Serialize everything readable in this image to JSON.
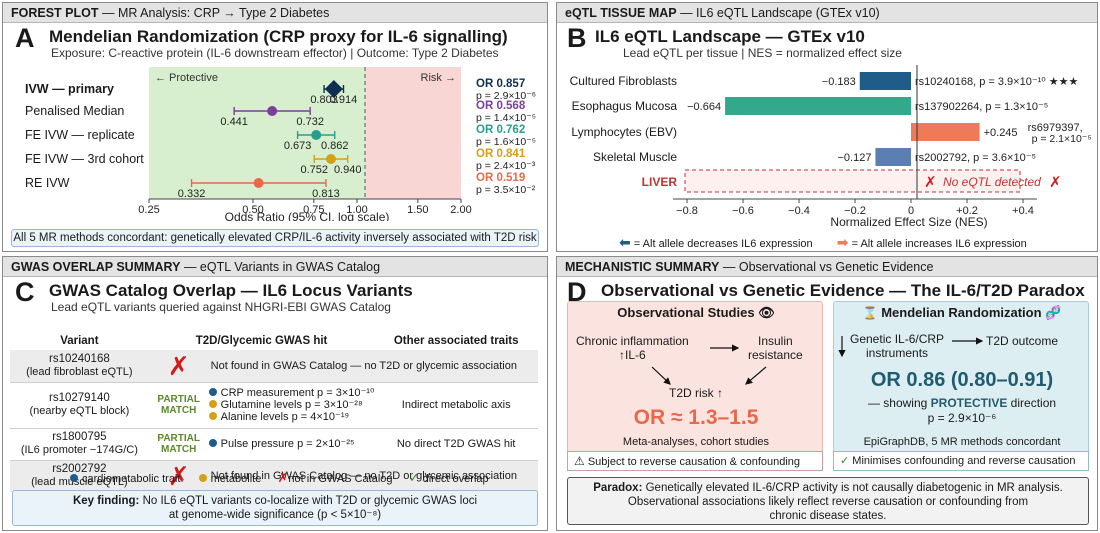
{
  "colors": {
    "ivw": "#0e2f52",
    "penalised": "#7b3f99",
    "fe_rep": "#2a9d8f",
    "fe_3rd": "#d4a017",
    "re": "#e8694a",
    "protective_bg": "#d8efcf",
    "risk_bg": "#f8d6d3",
    "neg_bar_dark": "#1f5c8a",
    "neg_bar_teal": "#34a88a",
    "pos_bar": "#ef7a5a",
    "cross": "#d11a1a",
    "check": "#2e8b2e",
    "obs_bg": "#fbe3df",
    "mr_bg": "#ddeef2"
  },
  "forest": {
    "header_bold": "FOREST PLOT",
    "header_rest": "— MR Analysis: CRP → Type 2 Diabetes",
    "letter": "A",
    "title": "Mendelian Randomization (CRP proxy for IL-6 signalling)",
    "subtitle": "Exposure: C-reactive protein (IL-6 downstream effector) | Outcome: Type 2 Diabetes",
    "protective_label": "← Protective",
    "risk_label": "Risk →",
    "xlabel": "Odds Ratio (95% CI, log scale)",
    "footer": "All 5 MR methods concordant: genetically elevated CRP/IL-6 activity inversely associated with T2D risk"
  },
  "chart_data": [
    {
      "type": "forest",
      "xlabel": "Odds Ratio (95% CI, log scale)",
      "xscale": "log",
      "xlim": [
        0.25,
        2.0
      ],
      "xticks": [
        "0.25",
        "0.50",
        "0.75",
        "1.00",
        "1.50",
        "2.00"
      ],
      "reference_line": 1.0,
      "rows": [
        {
          "method": "IVW — primary",
          "or": 0.857,
          "lo": 0.803,
          "hi": 0.914,
          "lo_label": "0.803",
          "hi_label": "0.914",
          "or_label": "OR 0.857",
          "p_label": "p = 2.9×10⁻⁶",
          "color": "#0e2f52",
          "marker": "diamond"
        },
        {
          "method": "Penalised Median",
          "or": 0.568,
          "lo": 0.441,
          "hi": 0.732,
          "lo_label": "0.441",
          "hi_label": "0.732",
          "or_label": "OR 0.568",
          "p_label": "p = 1.4×10⁻⁵",
          "color": "#7b3f99",
          "marker": "circle"
        },
        {
          "method": "FE IVW — replicate",
          "or": 0.762,
          "lo": 0.673,
          "hi": 0.862,
          "lo_label": "0.673",
          "hi_label": "0.862",
          "or_label": "OR 0.762",
          "p_label": "p = 1.6×10⁻⁵",
          "color": "#2a9d8f",
          "marker": "circle"
        },
        {
          "method": "FE IVW — 3rd cohort",
          "or": 0.841,
          "lo": 0.752,
          "hi": 0.94,
          "lo_label": "0.752",
          "hi_label": "0.940",
          "or_label": "OR 0.841",
          "p_label": "p = 2.4×10⁻³",
          "color": "#d4a017",
          "marker": "circle"
        },
        {
          "method": "RE IVW",
          "or": 0.519,
          "lo": 0.332,
          "hi": 0.813,
          "lo_label": "0.332",
          "hi_label": "0.813",
          "or_label": "OR 0.519",
          "p_label": "p = 3.5×10⁻²",
          "color": "#e8694a",
          "marker": "circle"
        }
      ]
    },
    {
      "type": "bar",
      "orientation": "horizontal",
      "xlabel": "Normalized Effect Size (NES)",
      "xlim": [
        -0.85,
        0.45
      ],
      "xticks": [
        "−0.8",
        "−0.6",
        "−0.4",
        "−0.2",
        "0",
        "+0.2",
        "+0.4"
      ],
      "bars": [
        {
          "tissue": "Cultured Fibroblasts",
          "nes": -0.183,
          "value_label": "−0.183",
          "annot": "rs10240168, p = 3.9×10⁻¹⁰ ★★★",
          "color": "#1f5c8a"
        },
        {
          "tissue": "Esophagus Mucosa",
          "nes": -0.664,
          "value_label": "−0.664",
          "annot": "rs137902264, p = 1.3×10⁻⁵",
          "color": "#34a88a"
        },
        {
          "tissue": "Lymphocytes (EBV)",
          "nes": 0.245,
          "value_label": "+0.245",
          "annot_line1": "rs6979397,",
          "annot_line2": "p = 2.1×10⁻⁵",
          "color": "#ef7a5a"
        },
        {
          "tissue": "Skeletal Muscle",
          "nes": -0.127,
          "value_label": "−0.127",
          "annot": "rs2002792, p = 3.6×10⁻⁵",
          "color": "#5b7fb0"
        }
      ]
    }
  ],
  "eqtl": {
    "header_bold": "eQTL TISSUE MAP",
    "header_rest": "— IL6 eQTL Landscape (GTEx v10)",
    "letter": "B",
    "title": "IL6 eQTL Landscape — GTEx v10",
    "subtitle": "Lead eQTL per tissue | NES = normalized effect size",
    "liver_label": "LIVER",
    "liver_note": "No eQTL detected",
    "legend_dec": "= Alt allele decreases IL6 expression",
    "legend_inc": "= Alt allele increases IL6 expression"
  },
  "gwas": {
    "header_bold": "GWAS OVERLAP SUMMARY",
    "header_rest": "— eQTL Variants in GWAS Catalog",
    "letter": "C",
    "title": "GWAS Catalog Overlap — IL6 Locus Variants",
    "subtitle": "Lead eQTL variants queried against NHGRI-EBI GWAS Catalog",
    "columns": [
      "Variant",
      "T2D/Glycemic GWAS hit",
      "Other associated traits"
    ],
    "rows": [
      {
        "variant": "rs10240168",
        "desc": "(lead fibroblast eQTL)",
        "status": "cross",
        "hits": [],
        "other": "Not found in GWAS Catalog — no T2D or glycemic association"
      },
      {
        "variant": "rs10279140",
        "desc": "(nearby eQTL block)",
        "status": "partial",
        "status_label": "PARTIAL MATCH",
        "hits": [
          {
            "text": "CRP measurement p = 3×10⁻¹⁰",
            "kind": "cardio"
          },
          {
            "text": "Glutamine levels p = 3×10⁻²⁸",
            "kind": "metab"
          },
          {
            "text": "Alanine levels p = 4×10⁻¹⁹",
            "kind": "metab"
          }
        ],
        "other": "Indirect metabolic axis"
      },
      {
        "variant": "rs1800795",
        "desc": "(IL6 promoter −174G/C)",
        "status": "partial",
        "status_label": "PARTIAL MATCH",
        "hits": [
          {
            "text": "Pulse pressure p = 2×10⁻²⁵",
            "kind": "cardio"
          }
        ],
        "other": "No direct T2D GWAS hit"
      },
      {
        "variant": "rs2002792",
        "desc": "(lead muscle eQTL)",
        "status": "cross",
        "hits": [],
        "other": "Not found in GWAS Catalog — no T2D or glycemic association"
      }
    ],
    "legend": [
      "cardiometabolic trait",
      "metabolite",
      "not in GWAS Catalog",
      "direct overlap"
    ],
    "key_finding_bold": "Key finding:",
    "key_finding_line1": "No IL6 eQTL variants co-localize with T2D or glycemic GWAS loci",
    "key_finding_line2": "at genome-wide significance (p < 5×10⁻⁸)"
  },
  "mech": {
    "header_bold": "MECHANISTIC SUMMARY",
    "header_rest": "— Observational vs Genetic Evidence",
    "letter": "D",
    "title": "Observational vs Genetic Evidence — The IL-6/T2D Paradox",
    "obs_title": "Observational Studies",
    "obs_node1_line1": "Chronic inflammation",
    "obs_node1_line2": "↑IL-6",
    "obs_node2_line1": "Insulin",
    "obs_node2_line2": "resistance",
    "obs_node3": "T2D risk ↑",
    "obs_or": "OR ≈ 1.3–1.5",
    "obs_source": "Meta-analyses, cohort studies",
    "obs_caveat": "Subject to reverse causation & confounding",
    "mr_title": "Mendelian Randomization",
    "mr_node1_line1": "Genetic IL-6/CRP",
    "mr_node1_line2": "instruments",
    "mr_node2": "T2D outcome",
    "mr_or": "OR 0.86 (0.80–0.91)",
    "mr_dir_pre": "— showing ",
    "mr_dir_bold": "PROTECTIVE",
    "mr_dir_post": " direction",
    "mr_p": "p = 2.9×10⁻⁶",
    "mr_source": "EpiGraphDB, 5 MR methods concordant",
    "mr_caveat": "Minimises confounding and reverse causation",
    "paradox_bold": "Paradox:",
    "paradox_line1": "Genetically elevated IL-6/CRP activity is not causally diabetogenic in MR analysis.",
    "paradox_line2": "Observational associations likely reflect reverse causation or confounding from",
    "paradox_line3": "chronic disease states."
  }
}
